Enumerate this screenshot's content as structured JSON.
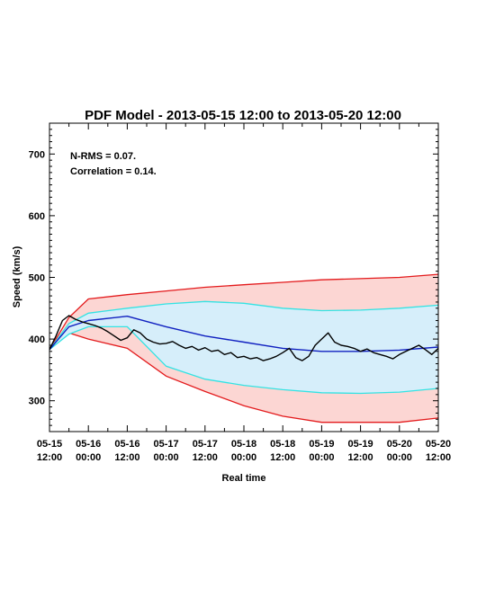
{
  "chart_data": {
    "type": "area",
    "title": "PDF Model - 2013-05-15 12:00 to 2013-05-20 12:00",
    "xlabel": "Real time",
    "ylabel": "Speed (km/s)",
    "xlim": [
      "2013-05-15 12:00",
      "2013-05-20 12:00"
    ],
    "ylim": [
      250,
      750
    ],
    "yticks": [
      300,
      400,
      500,
      600,
      700
    ],
    "annotations": [
      "N-RMS = 0.07.",
      "Correlation = 0.14."
    ],
    "xtick_labels": [
      {
        "date": "05-15",
        "time": "12:00"
      },
      {
        "date": "05-16",
        "time": "00:00"
      },
      {
        "date": "05-16",
        "time": "12:00"
      },
      {
        "date": "05-17",
        "time": "00:00"
      },
      {
        "date": "05-17",
        "time": "12:00"
      },
      {
        "date": "05-18",
        "time": "00:00"
      },
      {
        "date": "05-18",
        "time": "12:00"
      },
      {
        "date": "05-19",
        "time": "00:00"
      },
      {
        "date": "05-19",
        "time": "12:00"
      },
      {
        "date": "05-20",
        "time": "00:00"
      },
      {
        "date": "05-20",
        "time": "12:00"
      }
    ],
    "x_hours": [
      0,
      6,
      12,
      24,
      36,
      48,
      60,
      72,
      84,
      96,
      108,
      120
    ],
    "bands": [
      {
        "outer_color": "#e31a1c",
        "fill_color": "#fcd6d3",
        "upper": [
          383,
          435,
          465,
          472,
          478,
          484,
          488,
          492,
          496,
          498,
          500,
          505
        ],
        "lower": [
          383,
          410,
          400,
          385,
          340,
          315,
          292,
          275,
          265,
          265,
          265,
          272
        ]
      },
      {
        "outer_color": "#33e3e3",
        "fill_color": "#d6eefa",
        "upper": [
          383,
          425,
          442,
          450,
          457,
          461,
          458,
          450,
          446,
          447,
          450,
          455
        ],
        "lower": [
          383,
          408,
          420,
          420,
          356,
          335,
          325,
          318,
          313,
          312,
          314,
          320
        ]
      }
    ],
    "series": [
      {
        "color": "#1020c0",
        "x": [
          0,
          6,
          12,
          24,
          36,
          48,
          60,
          72,
          84,
          96,
          108,
          120
        ],
        "y": [
          383,
          420,
          430,
          437,
          420,
          405,
          395,
          385,
          380,
          380,
          382,
          387
        ]
      },
      {
        "color": "#000000",
        "x": [
          0,
          2,
          4,
          6,
          8,
          10,
          12,
          14,
          16,
          18,
          20,
          22,
          24,
          26,
          28,
          30,
          32,
          34,
          36,
          38,
          40,
          42,
          44,
          46,
          48,
          50,
          52,
          54,
          56,
          58,
          60,
          62,
          64,
          66,
          68,
          70,
          72,
          74,
          76,
          78,
          80,
          82,
          84,
          86,
          88,
          90,
          92,
          94,
          96,
          98,
          100,
          102,
          104,
          106,
          108,
          110,
          112,
          114,
          116,
          118,
          120
        ],
        "y": [
          383,
          405,
          430,
          438,
          432,
          428,
          425,
          422,
          418,
          412,
          405,
          398,
          402,
          415,
          410,
          400,
          395,
          392,
          393,
          396,
          390,
          385,
          388,
          382,
          386,
          380,
          382,
          375,
          378,
          370,
          372,
          368,
          370,
          365,
          368,
          372,
          378,
          385,
          370,
          365,
          372,
          390,
          400,
          410,
          395,
          390,
          388,
          385,
          380,
          384,
          378,
          375,
          372,
          368,
          375,
          380,
          385,
          390,
          383,
          375,
          385
        ]
      }
    ]
  }
}
